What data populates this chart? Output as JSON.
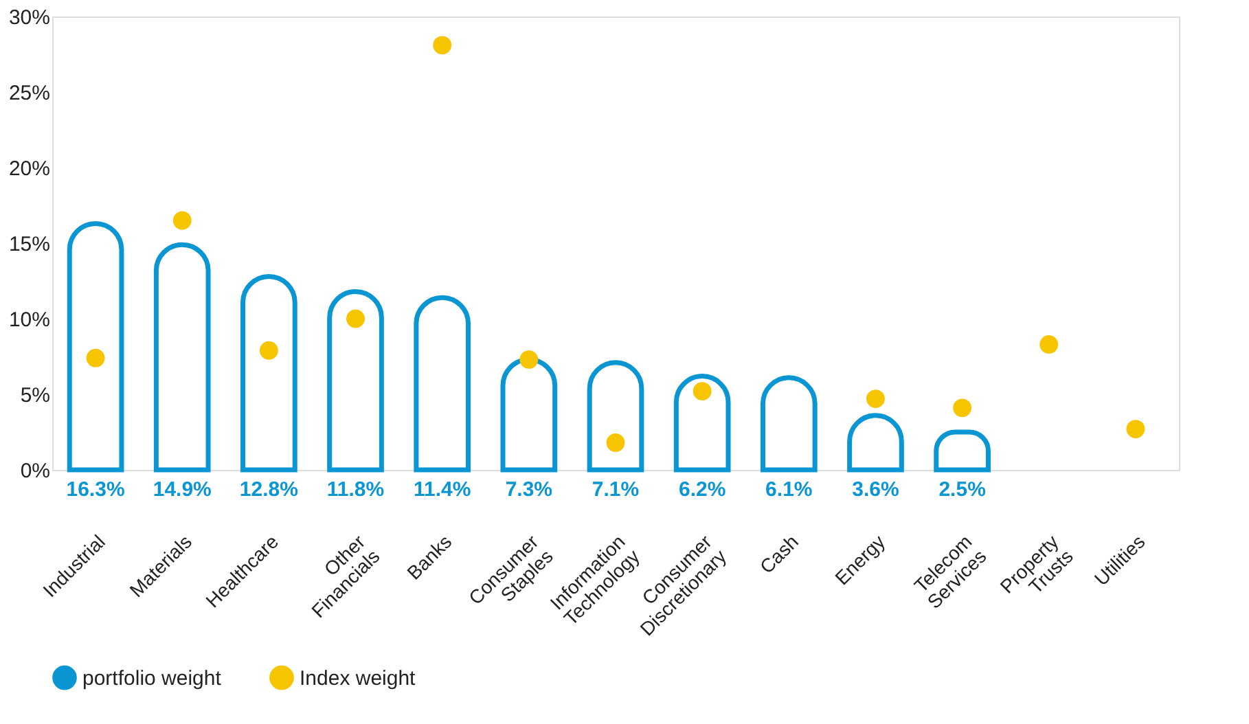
{
  "chart_data": {
    "type": "bar",
    "categories": [
      "Industrial",
      "Materials",
      "Healthcare",
      "Other Financials",
      "Banks",
      "Consumer Staples",
      "Information Technology",
      "Consumer Discretionary",
      "Cash",
      "Energy",
      "Telecom Services",
      "Property Trusts",
      "Utilities"
    ],
    "series": [
      {
        "name": "portfolio weight",
        "color": "#0a95d3",
        "values": [
          16.3,
          14.9,
          12.8,
          11.8,
          11.4,
          7.3,
          7.1,
          6.2,
          6.1,
          3.6,
          2.5,
          null,
          null
        ],
        "value_labels": [
          "16.3%",
          "14.9%",
          "12.8%",
          "11.8%",
          "11.4%",
          "7.3%",
          "7.1%",
          "6.2%",
          "6.1%",
          "3.6%",
          "2.5%",
          null,
          null
        ]
      },
      {
        "name": "Index weight",
        "color": "#f7c400",
        "type": "scatter",
        "values": [
          7.4,
          16.5,
          7.9,
          10.0,
          28.1,
          7.3,
          1.8,
          5.2,
          null,
          4.7,
          4.1,
          8.3,
          2.7
        ]
      }
    ],
    "ylim": [
      0,
      30
    ],
    "yticks": [
      {
        "value": 0,
        "label": "0%"
      },
      {
        "value": 5,
        "label": "5%"
      },
      {
        "value": 10,
        "label": "10%"
      },
      {
        "value": 15,
        "label": "15%"
      },
      {
        "value": 20,
        "label": "20%"
      },
      {
        "value": 25,
        "label": "25%"
      },
      {
        "value": 30,
        "label": "30%"
      }
    ],
    "grid": false,
    "legend": "bottom",
    "marker": "circle"
  }
}
